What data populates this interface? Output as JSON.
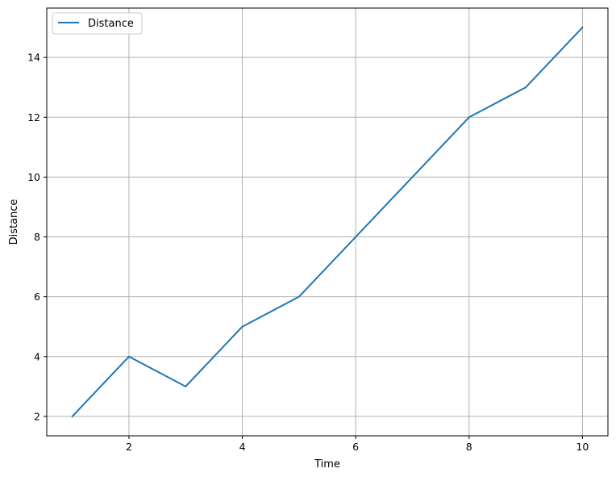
{
  "chart_data": {
    "type": "line",
    "title": "",
    "xlabel": "Time",
    "ylabel": "Distance",
    "xlim": [
      0.55,
      10.45
    ],
    "ylim": [
      1.35,
      15.65
    ],
    "xticks": [
      2,
      4,
      6,
      8,
      10
    ],
    "yticks": [
      2,
      4,
      6,
      8,
      10,
      12,
      14
    ],
    "grid": true,
    "legend_position": "top-left",
    "series": [
      {
        "name": "Distance",
        "color": "#1f77b4",
        "x": [
          1,
          2,
          3,
          4,
          5,
          6,
          7,
          8,
          9,
          10
        ],
        "y": [
          2,
          4,
          3,
          5,
          6,
          8,
          10,
          12,
          13,
          15
        ]
      }
    ]
  }
}
